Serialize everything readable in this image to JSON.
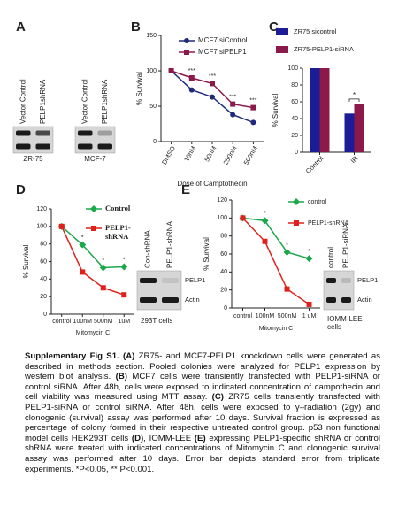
{
  "panel_labels": [
    "A",
    "B",
    "C",
    "D",
    "E"
  ],
  "blots": [
    {
      "lanes": [
        "Vector Control",
        "PELP1shRNA"
      ],
      "cell_line": [
        "ZR-75"
      ]
    },
    {
      "lanes": [
        "Vector Control",
        "PELP1shRNA"
      ],
      "cell_line": [
        "MCF-7"
      ]
    },
    {
      "lanes": [
        "Con-shRNA",
        "PELP1-shRNA"
      ],
      "bands": [
        "PELP1",
        "Actin"
      ],
      "cell_line": [
        "293T cells"
      ]
    },
    {
      "lanes": [
        "control",
        "PELP1-siRNA"
      ],
      "bands": [
        "PELP1",
        "Actin"
      ],
      "cell_line": [
        "IOMM-LEE",
        "cells"
      ]
    }
  ],
  "chart_data": [
    {
      "type": "line",
      "x_label": "Dose of Camptothecin",
      "y_label": "% Survival",
      "categories": [
        "DMSO",
        "10nM",
        "50nM",
        "250nM",
        "500nM"
      ],
      "series": [
        {
          "name": "MCF7 siControl",
          "color": "#1f2a7a",
          "marker": "circle",
          "values": [
            100,
            73,
            63,
            38,
            27
          ]
        },
        {
          "name": "MCF7 siPELP1",
          "color": "#8b1a4a",
          "marker": "square",
          "values": [
            100,
            90,
            82,
            53,
            48
          ],
          "annotations": [
            null,
            "***",
            "***",
            "***",
            "***"
          ]
        }
      ],
      "ylim": [
        0,
        150
      ],
      "yticks": [
        0,
        50,
        100,
        150
      ]
    },
    {
      "type": "bar",
      "y_label": "% Survival",
      "categories": [
        "Control",
        "IR"
      ],
      "series": [
        {
          "name": "ZR75 sicontrol",
          "color": "#1c1c96",
          "values": [
            100,
            46
          ]
        },
        {
          "name": "ZR75-PELP1-siRNA",
          "color": "#8b1a4a",
          "values": [
            100,
            57
          ],
          "annotations": [
            null,
            "*"
          ]
        }
      ],
      "ylim": [
        0,
        100
      ],
      "yticks": [
        0,
        20,
        40,
        60,
        80,
        100
      ]
    },
    {
      "type": "line",
      "x_label": "Mitomycin C",
      "y_label": "% Survival",
      "categories": [
        "control",
        "100nM",
        "500nM",
        "1uM"
      ],
      "series": [
        {
          "name": "Control",
          "color": "#1aa84b",
          "marker": "diamond",
          "values": [
            100,
            79,
            53,
            54
          ],
          "annotations": [
            null,
            "*",
            "*",
            "*"
          ]
        },
        {
          "name": "PELP1-shRNA",
          "color": "#e0201b",
          "marker": "square",
          "values": [
            100,
            48,
            30,
            22
          ]
        }
      ],
      "ylim": [
        0,
        120
      ],
      "yticks": [
        0,
        20,
        40,
        60,
        80,
        100,
        120
      ]
    },
    {
      "type": "line",
      "x_label": "Mitomycin C",
      "y_label": "% Survival",
      "categories": [
        "control",
        "100nM",
        "500nM",
        "1 uM"
      ],
      "series": [
        {
          "name": "control",
          "color": "#1aa84b",
          "marker": "diamond",
          "values": [
            100,
            97,
            62,
            55
          ],
          "annotations": [
            null,
            "*",
            "*",
            "*"
          ]
        },
        {
          "name": "PELP1-shRNA",
          "color": "#e0201b",
          "marker": "square",
          "values": [
            100,
            74,
            21,
            4
          ]
        }
      ],
      "ylim": [
        0,
        120
      ],
      "yticks": [
        0,
        20,
        40,
        60,
        80,
        100,
        120
      ]
    }
  ],
  "caption": [
    {
      "text": "Supplementary Fig S1. ",
      "bold": true
    },
    {
      "text": "(A)",
      "bold": true
    },
    {
      "text": " ZR75- and MCF7-PELP1 knockdown cells were generated as described in methods section. Pooled colonies were analyzed for PELP1 expression by western blot analysis. ",
      "bold": false
    },
    {
      "text": "(B)",
      "bold": true
    },
    {
      "text": " MCF7 cells were transiently transfected with PELP1-siRNA or control siRNA. After 48h, cells were exposed to indicated concentration of campothecin and cell viability was measured using MTT assay. ",
      "bold": false
    },
    {
      "text": "(C)",
      "bold": true
    },
    {
      "text": " ZR75 cells transiently transfected with PELP1-siRNA or control siRNA. After 48h, cells were exposed to γ–radiation (2gy) and clonogenic (survival) assay was performed after 10 days. Survival fraction is expressed as percentage of colony formed in their respective untreated control group. p53 non functional model cells HEK293T cells ",
      "bold": false
    },
    {
      "text": "(D)",
      "bold": true
    },
    {
      "text": ", IOMM-LEE ",
      "bold": false
    },
    {
      "text": "(E)",
      "bold": true
    },
    {
      "text": " expressing PELP1-specific shRNA or control shRNA were treated with indicated concentrations of Mitomycin C and clonogenic survival assay was performed after 10 days. Error bar depicts standard error from triplicate experiments. *P<0.05, ** P<0.001.",
      "bold": false
    }
  ]
}
